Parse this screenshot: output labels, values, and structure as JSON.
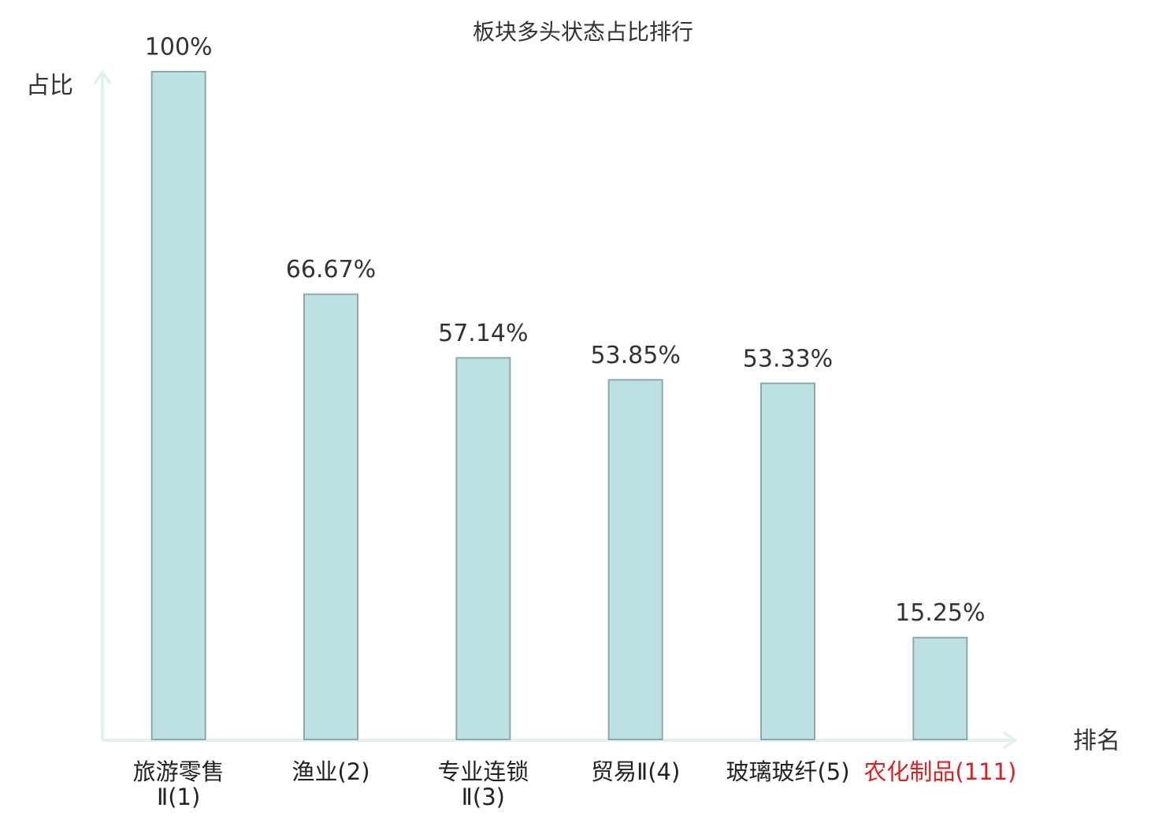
{
  "chart_data": {
    "type": "bar",
    "title": "板块多头状态占比排行",
    "y_label": "占比",
    "x_label": "排名",
    "categories": [
      "旅游零售\nⅡ(1)",
      "渔业(2)",
      "专业连锁\nⅡ(3)",
      "贸易Ⅱ(4)",
      "玻璃玻纤(5)",
      "农化制品(111)"
    ],
    "category_colors": [
      "#222222",
      "#222222",
      "#222222",
      "#222222",
      "#222222",
      "#e02020"
    ],
    "values": [
      100,
      66.67,
      57.14,
      53.85,
      53.33,
      15.25
    ],
    "value_labels": [
      "100%",
      "66.67%",
      "57.14%",
      "53.85%",
      "53.33%",
      "15.25%"
    ],
    "color": "#bde0e2",
    "edge_color": "#8aa9ab",
    "ylim": [
      0,
      100
    ]
  }
}
